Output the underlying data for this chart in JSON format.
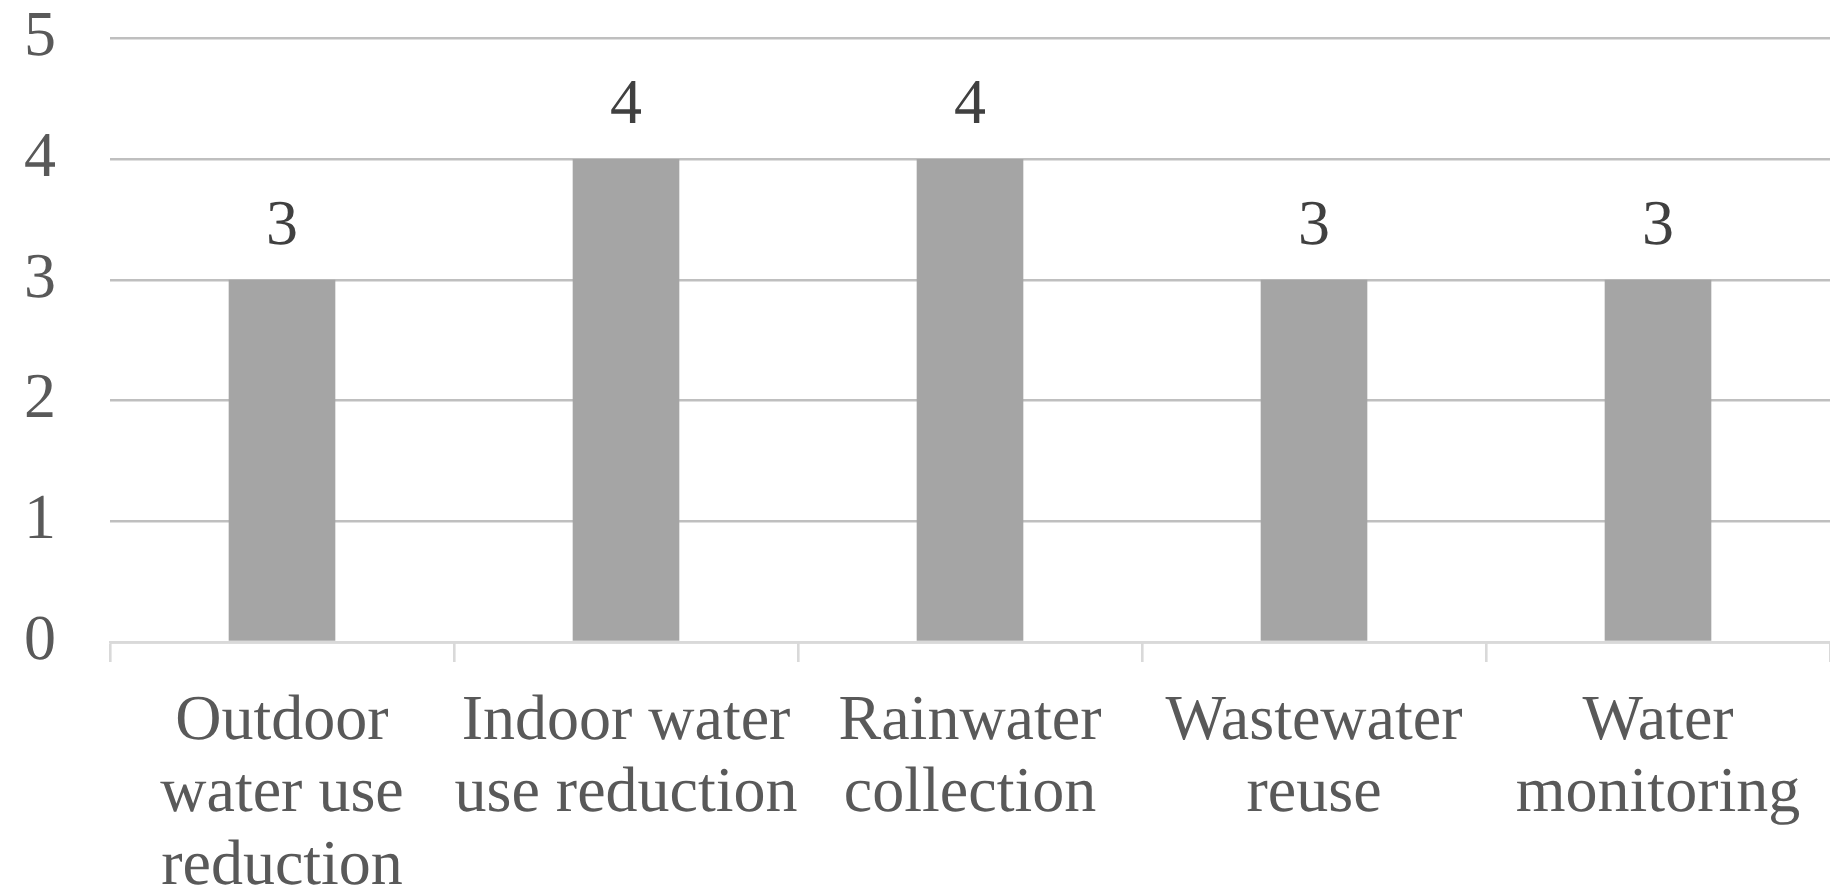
{
  "chart_data": {
    "type": "bar",
    "categories": [
      "Outdoor water use reduction",
      "Indoor water use reduction",
      "Rainwater collection",
      "Wastewater reuse",
      "Water monitoring"
    ],
    "values": [
      3,
      4,
      4,
      3,
      3
    ],
    "color": "#a5a5a5",
    "ylim": [
      0,
      5
    ],
    "yticks": [
      0,
      1,
      2,
      3,
      4,
      5
    ],
    "grid": "y",
    "data_labels": true
  }
}
